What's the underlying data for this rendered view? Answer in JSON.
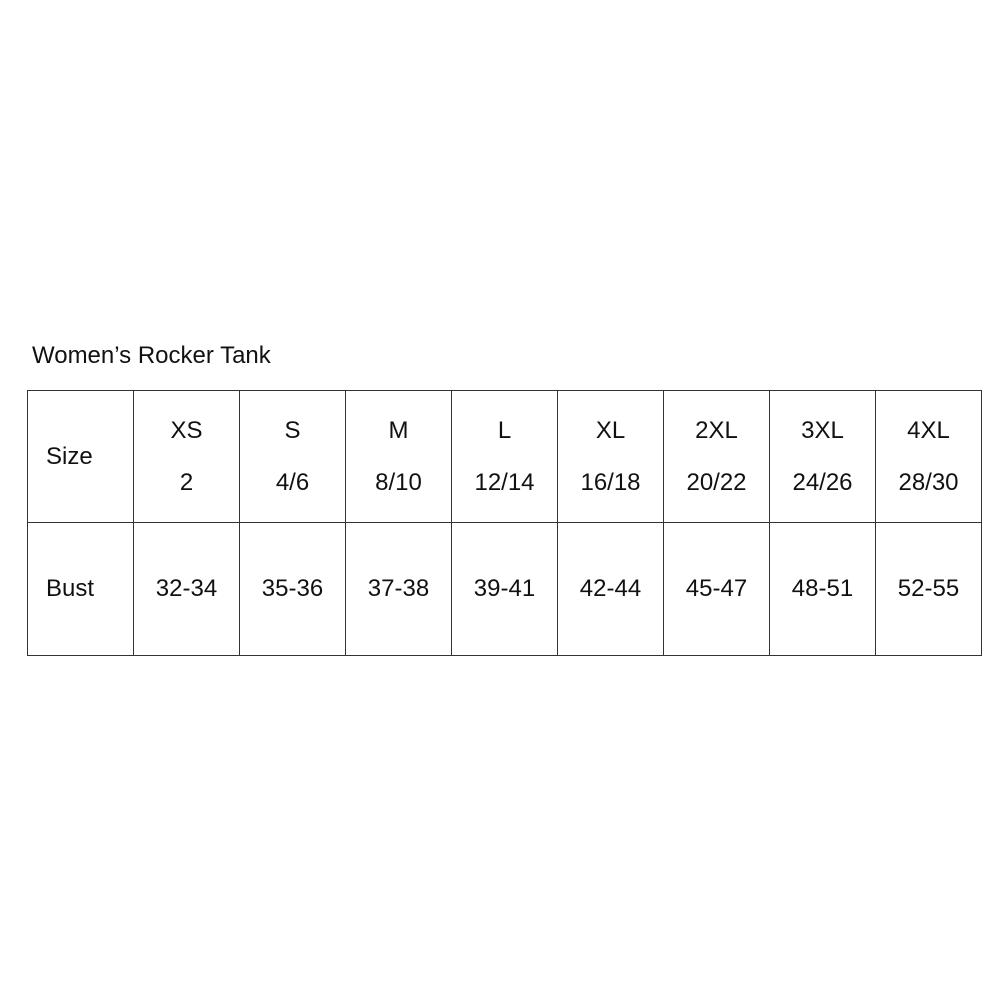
{
  "title": "Women’s Rocker Tank",
  "row_labels": {
    "size": "Size",
    "bust": "Bust"
  },
  "columns": [
    {
      "size": "XS",
      "numeric": "2",
      "bust": "32-34"
    },
    {
      "size": "S",
      "numeric": "4/6",
      "bust": "35-36"
    },
    {
      "size": "M",
      "numeric": "8/10",
      "bust": "37-38"
    },
    {
      "size": "L",
      "numeric": "12/14",
      "bust": "39-41"
    },
    {
      "size": "XL",
      "numeric": "16/18",
      "bust": "42-44"
    },
    {
      "size": "2XL",
      "numeric": "20/22",
      "bust": "45-47"
    },
    {
      "size": "3XL",
      "numeric": "24/26",
      "bust": "48-51"
    },
    {
      "size": "4XL",
      "numeric": "28/30",
      "bust": "52-55"
    }
  ]
}
